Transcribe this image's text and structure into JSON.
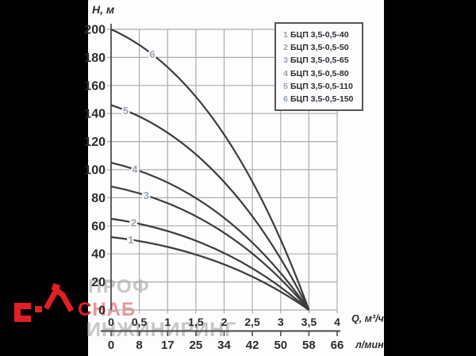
{
  "chart_data": {
    "type": "line",
    "title": "",
    "ylabel": "Н, м",
    "xlabel_primary": "Q, м³/ч",
    "xlabel_secondary": "л/мин",
    "xlim": [
      0,
      4
    ],
    "ylim": [
      0,
      200
    ],
    "grid": true,
    "legend_position": "top-right",
    "converge_point_q": 3.5,
    "x": [
      0,
      1,
      2,
      3,
      3.5
    ],
    "series": [
      {
        "num": "1",
        "name": "БЦП 3,5-0,5-40",
        "head": 52,
        "values": [
          52,
          48,
          35,
          14,
          0
        ],
        "label_q": 0.35
      },
      {
        "num": "2",
        "name": "БЦП 3,5-0,5-50",
        "head": 65,
        "values": [
          65,
          60,
          44,
          17,
          0
        ],
        "label_q": 0.4
      },
      {
        "num": "3",
        "name": "БЦП 3,5-0,5-65",
        "head": 88,
        "values": [
          88,
          81,
          59,
          23,
          0
        ],
        "label_q": 0.62
      },
      {
        "num": "4",
        "name": "БЦП 3,5-0,5-80",
        "head": 105,
        "values": [
          105,
          96,
          71,
          28,
          0
        ],
        "label_q": 0.42
      },
      {
        "num": "5",
        "name": "БЦП 3,5-0,5-110",
        "head": 146,
        "values": [
          146,
          134,
          98,
          39,
          0
        ],
        "label_q": 0.26
      },
      {
        "num": "6",
        "name": "БЦП 3,5-0,5-150",
        "head": 200,
        "values": [
          200,
          184,
          135,
          53,
          0
        ],
        "label_q": 0.73
      }
    ],
    "x_ticks_primary": [
      "0",
      "0,5",
      "1",
      "1,5",
      "2",
      "2,5",
      "3",
      "3,5",
      "4"
    ],
    "x_ticks_secondary": [
      "0",
      "8",
      "17",
      "25",
      "34",
      "42",
      "50",
      "58",
      "66"
    ],
    "y_ticks": [
      "0",
      "20",
      "40",
      "60",
      "80",
      "100",
      "120",
      "140",
      "160",
      "180",
      "200"
    ]
  },
  "legend": {
    "items": [
      {
        "num": "1",
        "label": "БЦП 3,5-0,5-40"
      },
      {
        "num": "2",
        "label": "БЦП 3,5-0,5-50"
      },
      {
        "num": "3",
        "label": "БЦП 3,5-0,5-65"
      },
      {
        "num": "4",
        "label": "БЦП 3,5-0,5-80"
      },
      {
        "num": "5",
        "label": "БЦП 3,5-0,5-110"
      },
      {
        "num": "6",
        "label": "БЦП 3,5-0,5-150"
      }
    ]
  },
  "watermark": {
    "line1": "ПРОФ",
    "line2": "СНАБ",
    "line3": "ИНЖИНИРИНГ"
  },
  "colors": {
    "background_bars": "#000000",
    "panel": "#fdfdfd",
    "grid": "#acacac",
    "axis": "#47474a",
    "curve": "#3c3c3e",
    "tick_text": "#2c2c2e",
    "curve_number": "#96a2b0",
    "legend_border": "#55565a",
    "brand_red": "#e21f26",
    "brand_pink": "#ec9598",
    "watermark_gray": "#c7c7c9"
  }
}
